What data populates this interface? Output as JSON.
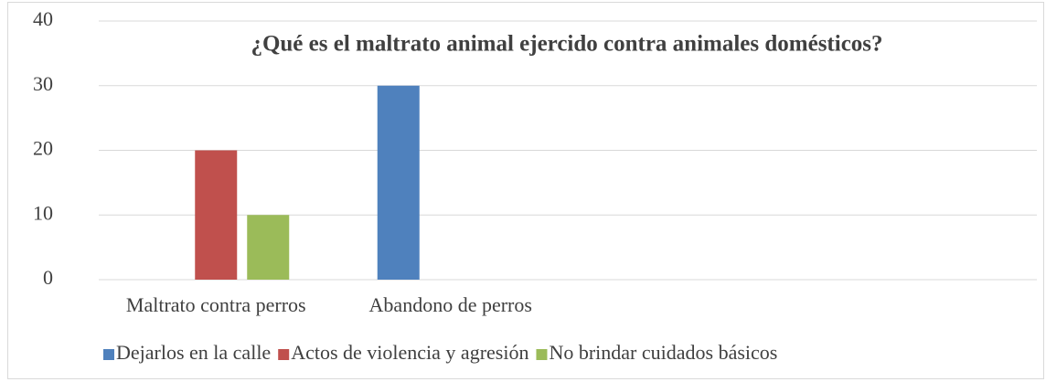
{
  "chart_data": {
    "type": "bar",
    "title": "¿Qué es el maltrato animal ejercido contra animales domésticos?",
    "categories": [
      "Maltrato contra perros",
      "Abandono de perros",
      null,
      null
    ],
    "series": [
      {
        "name": "Dejarlos en la calle",
        "color": "#4f81bd",
        "values": [
          0,
          30,
          null,
          null
        ]
      },
      {
        "name": "Actos de violencia y agresión",
        "color": "#c0504d",
        "values": [
          20,
          0,
          null,
          null
        ]
      },
      {
        "name": "No brindar cuidados básicos",
        "color": "#9bbb59",
        "values": [
          10,
          0,
          null,
          null
        ]
      }
    ],
    "ylim": [
      0,
      40
    ],
    "yticks": [
      0,
      10,
      20,
      30,
      40
    ],
    "grid": true,
    "legend": "bottom"
  }
}
